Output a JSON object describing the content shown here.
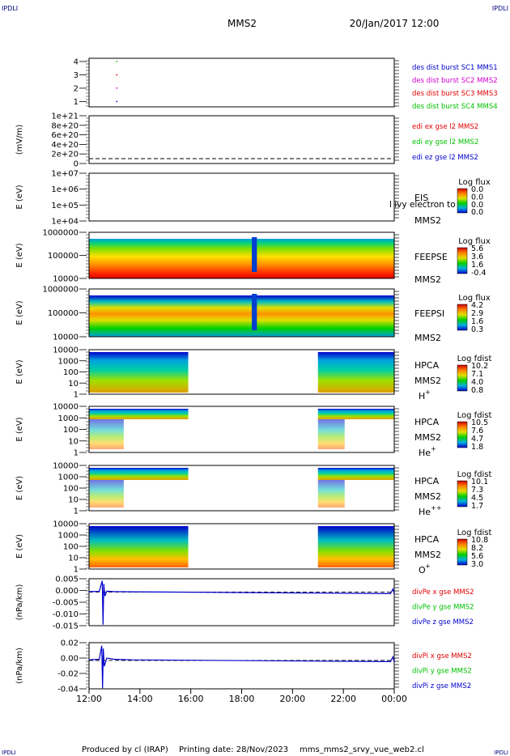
{
  "header": {
    "corner_left": "IPDLI",
    "corner_right": "IPDLI",
    "spacecraft": "MMS2",
    "date_time": "20/Jan/2017 12:00"
  },
  "footer": {
    "produced_by": "Produced by cl (IRAP)",
    "printing_date": "Printing date: 28/Nov/2023",
    "script_name": "mms_mms2_srvy_vue_web2.cl",
    "corner_left": "IPDLI",
    "corner_right": "IPDLI"
  },
  "colors": {
    "red": "#e00000",
    "green": "#00c000",
    "blue": "#0000cc",
    "magenta": "#d000d0",
    "dashed": "#000000"
  },
  "chart_data": [
    {
      "type": "scatter",
      "panel": "burst",
      "yticks": [
        "4",
        "3",
        "2",
        "1"
      ],
      "ylim": [
        0.5,
        4.5
      ],
      "series": [
        {
          "name": "des dist burst SC1 MMS1",
          "color": "#0000cc",
          "x": [
            12.55
          ],
          "y": [
            1
          ]
        },
        {
          "name": "des dist burst SC2 MMS2",
          "color": "#d000d0",
          "x": [
            12.55
          ],
          "y": [
            2
          ]
        },
        {
          "name": "des dist burst SC3 MMS3",
          "color": "#e00000",
          "x": [
            12.55
          ],
          "y": [
            3
          ]
        },
        {
          "name": "des dist burst SC4 MMS4",
          "color": "#00c000",
          "x": [
            12.55
          ],
          "y": [
            4
          ]
        }
      ]
    },
    {
      "type": "line",
      "panel": "edi",
      "ylabel": "(mV/m)",
      "yticks": [
        "1e+21",
        "8e+20",
        "6e+20",
        "4e+20",
        "2e+20",
        "0"
      ],
      "ylim": [
        0,
        1e+21
      ],
      "series": [
        {
          "name": "edi ex gse l2 MMS2",
          "color": "#e00000"
        },
        {
          "name": "edi ey gse l2 MMS2",
          "color": "#00c000"
        },
        {
          "name": "edi ez gse l2 MMS2",
          "color": "#0000cc"
        }
      ],
      "zero_line": true
    },
    {
      "type": "heatmap",
      "panel": "eis",
      "ylabel": "E (eV)",
      "yticks": [
        "1e+07",
        "1e+06",
        "1e+05",
        "1e+04"
      ],
      "instrument": "EIS",
      "spacecraft": "MMS2",
      "overlay_text": "l ivy electron to",
      "colorbar_title": "Log flux",
      "colorbar_ticks": [
        "0.0",
        "0.0",
        "0.0",
        "0.0"
      ],
      "coverage": []
    },
    {
      "type": "heatmap",
      "panel": "feepse",
      "ylabel": "E (eV)",
      "yticks": [
        "1000000",
        "100000",
        "10000"
      ],
      "instrument": "FEEPSE",
      "spacecraft": "MMS2",
      "colorbar_title": "Log flux",
      "colorbar_ticks": [
        "5.6",
        "3.6",
        "1.6",
        "-0.4"
      ],
      "coverage": [
        [
          12.0,
          24.0
        ]
      ],
      "gap": [
        18.4,
        18.6
      ]
    },
    {
      "type": "heatmap",
      "panel": "feepsi",
      "ylabel": "E (eV)",
      "yticks": [
        "1000000",
        "100000",
        "10000"
      ],
      "instrument": "FEEPSI",
      "spacecraft": "MMS2",
      "colorbar_title": "Log flux",
      "colorbar_ticks": [
        "4.2",
        "2.9",
        "1.6",
        "0.3"
      ],
      "coverage": [
        [
          12.0,
          24.0
        ]
      ],
      "gap": [
        18.4,
        18.6
      ]
    },
    {
      "type": "heatmap",
      "panel": "hpca_h",
      "ylabel": "E (eV)",
      "yticks": [
        "10000",
        "1000",
        "100",
        "10",
        "1"
      ],
      "instrument": "HPCA",
      "spacecraft": "MMS2",
      "species": "H",
      "species_sup": "+",
      "colorbar_title": "Log fdist",
      "colorbar_ticks": [
        "10.2",
        "7.1",
        "4.0",
        "0.8"
      ],
      "coverage": [
        [
          12.0,
          15.9
        ],
        [
          21.0,
          24.0
        ]
      ]
    },
    {
      "type": "heatmap",
      "panel": "hpca_he",
      "ylabel": "E (eV)",
      "yticks": [
        "10000",
        "1000",
        "100",
        "10",
        "1"
      ],
      "instrument": "HPCA",
      "spacecraft": "MMS2",
      "species": "He",
      "species_sup": "+",
      "colorbar_title": "Log fdist",
      "colorbar_ticks": [
        "10.5",
        "7.6",
        "4.7",
        "1.8"
      ],
      "coverage": [
        [
          12.0,
          15.9
        ],
        [
          21.0,
          24.0
        ]
      ]
    },
    {
      "type": "heatmap",
      "panel": "hpca_hepp",
      "ylabel": "E (eV)",
      "yticks": [
        "10000",
        "1000",
        "100",
        "10",
        "1"
      ],
      "instrument": "HPCA",
      "spacecraft": "MMS2",
      "species": "He",
      "species_sup": "++",
      "colorbar_title": "Log fdist",
      "colorbar_ticks": [
        "10.1",
        "7.3",
        "4.5",
        "1.7"
      ],
      "coverage": [
        [
          12.0,
          15.9
        ],
        [
          21.0,
          24.0
        ]
      ]
    },
    {
      "type": "heatmap",
      "panel": "hpca_o",
      "ylabel": "E (eV)",
      "yticks": [
        "10000",
        "1000",
        "100",
        "10",
        "1"
      ],
      "instrument": "HPCA",
      "spacecraft": "MMS2",
      "species": "O",
      "species_sup": "+",
      "colorbar_title": "Log fdist",
      "colorbar_ticks": [
        "10.8",
        "8.2",
        "5.6",
        "3.0"
      ],
      "coverage": [
        [
          12.0,
          15.9
        ],
        [
          21.0,
          24.0
        ]
      ]
    },
    {
      "type": "line",
      "panel": "divpe",
      "ylabel": "(nPa/km)",
      "yticks": [
        "0.005",
        "0.000",
        "-0.005",
        "-0.010",
        "-0.015"
      ],
      "ylim": [
        -0.0165,
        0.0065
      ],
      "zero_line": true,
      "series": [
        {
          "name": "divPe x gse MMS2",
          "color": "#e00000"
        },
        {
          "name": "divPe y gse MMS2",
          "color": "#00c000"
        },
        {
          "name": "divPe z gse MMS2",
          "color": "#0000cc",
          "x": [
            12.0,
            12.4,
            12.52,
            12.55,
            12.58,
            12.62,
            12.7,
            13.0,
            13.6,
            23.85,
            23.95,
            24.0
          ],
          "y": [
            0.0002,
            0.0003,
            0.0055,
            -0.016,
            0.004,
            -0.002,
            0.0004,
            0.0002,
            0.0001,
            -0.0008,
            0.0015,
            -0.001
          ]
        }
      ]
    },
    {
      "type": "line",
      "panel": "divpi",
      "ylabel": "(nPa/km)",
      "yticks": [
        "0.02",
        "0.00",
        "-0.02",
        "-0.04"
      ],
      "ylim": [
        -0.048,
        0.03
      ],
      "zero_line": true,
      "series": [
        {
          "name": "divPi x gse MMS2",
          "color": "#e00000"
        },
        {
          "name": "divPi y gse MMS2",
          "color": "#00c000"
        },
        {
          "name": "divPi z gse MMS2",
          "color": "#0000cc",
          "x": [
            12.0,
            12.4,
            12.5,
            12.53,
            12.56,
            12.6,
            12.7,
            13.0,
            13.7,
            23.85,
            23.95,
            24.0
          ],
          "y": [
            0.001,
            0.002,
            0.025,
            -0.047,
            0.02,
            -0.01,
            0.004,
            0.002,
            0.001,
            -0.002,
            0.006,
            -0.003
          ]
        }
      ]
    }
  ],
  "xaxis": {
    "ticks": [
      "12:00",
      "14:00",
      "16:00",
      "18:00",
      "20:00",
      "22:00",
      "00:00"
    ],
    "tick_hours": [
      12,
      14,
      16,
      18,
      20,
      22,
      24
    ],
    "range_hours": [
      12,
      24
    ]
  }
}
